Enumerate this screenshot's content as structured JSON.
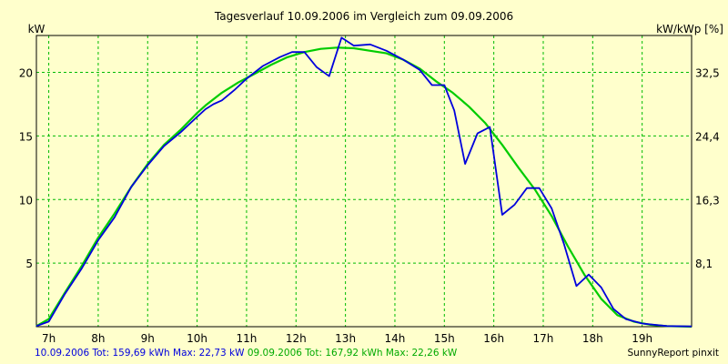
{
  "chart_data": {
    "type": "line",
    "title": "Tagesverlauf 10.09.2006 im Vergleich zum 09.09.2006",
    "ylabel": "kW",
    "y2label": "kW/kWp [%]",
    "xlabel": "",
    "xlim": [
      6.75,
      20.0
    ],
    "ylim": [
      0,
      22.9
    ],
    "x_ticks": [
      7,
      8,
      9,
      10,
      11,
      12,
      13,
      14,
      15,
      16,
      17,
      18,
      19
    ],
    "x_tick_labels": [
      "7h",
      "8h",
      "9h",
      "10h",
      "11h",
      "12h",
      "13h",
      "14h",
      "15h",
      "16h",
      "17h",
      "18h",
      "19h"
    ],
    "y_ticks": [
      5,
      10,
      15,
      20
    ],
    "y_tick_labels": [
      "5",
      "10",
      "15",
      "20"
    ],
    "y2_ticks": [
      5,
      10,
      15,
      20
    ],
    "y2_tick_labels": [
      "8,1",
      "16,3",
      "24,4",
      "32,5"
    ],
    "grid": true,
    "series": [
      {
        "name": "10.09.2006",
        "color": "#0000dd",
        "x": [
          6.75,
          7.0,
          7.33,
          7.67,
          8.0,
          8.33,
          8.67,
          9.0,
          9.33,
          9.67,
          10.0,
          10.17,
          10.33,
          10.5,
          10.75,
          11.0,
          11.33,
          11.67,
          11.92,
          12.17,
          12.42,
          12.67,
          12.92,
          13.17,
          13.5,
          13.83,
          14.17,
          14.5,
          14.75,
          15.0,
          15.2,
          15.42,
          15.67,
          15.92,
          16.17,
          16.42,
          16.67,
          16.92,
          17.17,
          17.42,
          17.67,
          17.92,
          18.17,
          18.42,
          18.67,
          19.0,
          19.5,
          20.0
        ],
        "y": [
          0.05,
          0.4,
          2.6,
          4.6,
          6.8,
          8.6,
          11.0,
          12.7,
          14.2,
          15.3,
          16.5,
          17.1,
          17.5,
          17.8,
          18.6,
          19.5,
          20.5,
          21.2,
          21.6,
          21.6,
          20.4,
          19.7,
          22.73,
          22.1,
          22.2,
          21.7,
          21.0,
          20.2,
          19.0,
          19.0,
          17.0,
          12.8,
          15.2,
          15.7,
          8.8,
          9.6,
          10.9,
          10.9,
          9.3,
          6.5,
          3.2,
          4.1,
          3.1,
          1.4,
          0.6,
          0.25,
          0.05,
          0.02
        ]
      },
      {
        "name": "09.09.2006",
        "color": "#00cc00",
        "x": [
          6.75,
          7.0,
          7.33,
          7.67,
          8.0,
          8.33,
          8.67,
          9.0,
          9.33,
          9.67,
          10.0,
          10.17,
          10.5,
          10.83,
          11.17,
          11.5,
          11.83,
          12.17,
          12.5,
          12.83,
          13.17,
          13.5,
          13.83,
          14.17,
          14.5,
          14.83,
          15.17,
          15.5,
          15.83,
          16.17,
          16.5,
          16.83,
          17.17,
          17.5,
          17.83,
          18.17,
          18.5,
          18.83,
          19.17,
          19.5,
          20.0
        ],
        "y": [
          0.05,
          0.6,
          2.7,
          4.8,
          7.0,
          8.9,
          11.0,
          12.8,
          14.3,
          15.5,
          16.8,
          17.4,
          18.4,
          19.2,
          19.9,
          20.6,
          21.2,
          21.6,
          21.85,
          21.95,
          21.9,
          21.7,
          21.5,
          21.0,
          20.3,
          19.3,
          18.4,
          17.3,
          16.0,
          14.3,
          12.5,
          10.8,
          8.7,
          6.3,
          4.1,
          2.2,
          0.9,
          0.4,
          0.15,
          0.05,
          0.0
        ]
      }
    ],
    "footer_left_line1": "10.09.2006 Tot: 159,69 kWh Max: 22,73 kW",
    "footer_left_line2": "09.09.2006 Tot: 167,92 kWh Max: 22,26 kW",
    "footer_right": "SunnyReport pinxit"
  },
  "colors": {
    "background": "#ffffcc",
    "grid": "#00bb00",
    "series1": "#0000dd",
    "series2": "#00cc00"
  }
}
